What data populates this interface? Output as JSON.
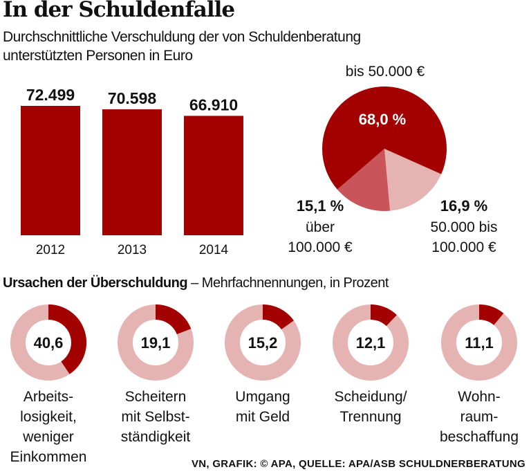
{
  "title": "In der Schuldenfalle",
  "subtitle": "Durchschnittliche Verschuldung der von Schuldenberatung unterstützten Personen in Euro",
  "section2": {
    "bold": "Ursachen der Überschuldung",
    "rest": " – Mehrfachnennungen, in Prozent"
  },
  "source": "VN, GRAFIK: © APA, QUELLE: APA/ASB SCHULDNERBERATUNG",
  "colors": {
    "dark": "#a30000",
    "mid": "#c9555a",
    "light": "#e6b3b3"
  },
  "chart_data": [
    {
      "type": "bar",
      "categories": [
        "2012",
        "2013",
        "2014"
      ],
      "values": [
        72499,
        70598,
        66910
      ],
      "data_labels": [
        "72.499",
        "70.598",
        "66.910"
      ],
      "ylim": [
        0,
        80000
      ]
    },
    {
      "type": "pie",
      "slices": [
        {
          "label": "bis 50.000 €",
          "value": 68.0,
          "value_label": "68,0 %",
          "color": "#a30000"
        },
        {
          "label": "50.000 bis 100.000 €",
          "value": 16.9,
          "value_label": "16,9 %",
          "color": "#e6b3b3"
        },
        {
          "label": "über 100.000 €",
          "value": 15.1,
          "value_label": "15,1 %",
          "color": "#c9555a"
        }
      ]
    },
    {
      "type": "donut",
      "items": [
        {
          "value": 40.6,
          "value_label": "40,6",
          "label": "Arbeits-\nlosigkeit,\nweniger\nEinkommen"
        },
        {
          "value": 19.1,
          "value_label": "19,1",
          "label": "Scheitern\nmit Selbst-\nständigkeit"
        },
        {
          "value": 15.2,
          "value_label": "15,2",
          "label": "Umgang\nmit Geld"
        },
        {
          "value": 12.1,
          "value_label": "12,1",
          "label": "Scheidung/\nTrennung"
        },
        {
          "value": 11.1,
          "value_label": "11,1",
          "label": "Wohn-\nraum-\nbeschaffung"
        }
      ]
    }
  ]
}
